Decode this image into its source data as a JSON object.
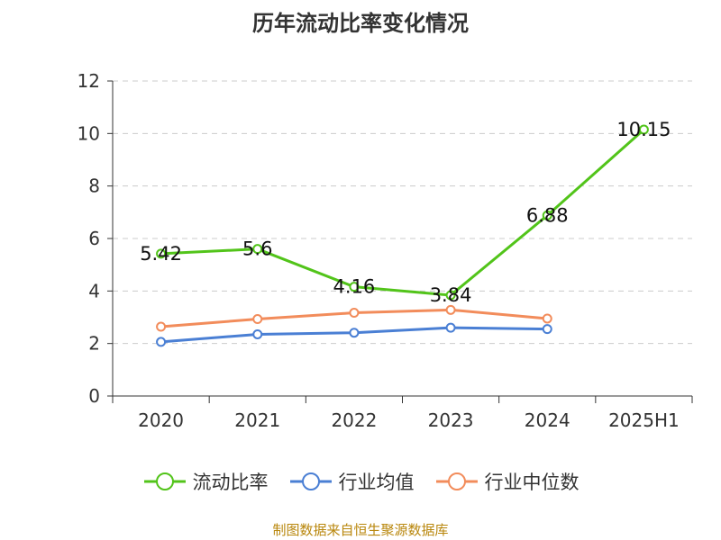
{
  "chart_data": {
    "type": "line",
    "title": "历年流动比率变化情况",
    "categories": [
      "2020",
      "2021",
      "2022",
      "2023",
      "2024",
      "2025H1"
    ],
    "ylim": [
      0,
      12
    ],
    "yticks": [
      0,
      2,
      4,
      6,
      8,
      10,
      12
    ],
    "grid": true,
    "legend_position": "bottom",
    "series": [
      {
        "name": "流动比率",
        "color": "#52c41a",
        "values": [
          5.42,
          5.6,
          4.16,
          3.84,
          6.88,
          10.15
        ],
        "labels": [
          "5.42",
          "5.6",
          "4.16",
          "3.84",
          "6.88",
          "10.15"
        ]
      },
      {
        "name": "行业均值",
        "color": "#4a7fd4",
        "values": [
          2.06,
          2.35,
          2.41,
          2.6,
          2.55,
          null
        ]
      },
      {
        "name": "行业中位数",
        "color": "#f28c5b",
        "values": [
          2.64,
          2.93,
          3.17,
          3.28,
          2.95,
          null
        ]
      }
    ]
  },
  "source_note": "制图数据来自恒生聚源数据库"
}
